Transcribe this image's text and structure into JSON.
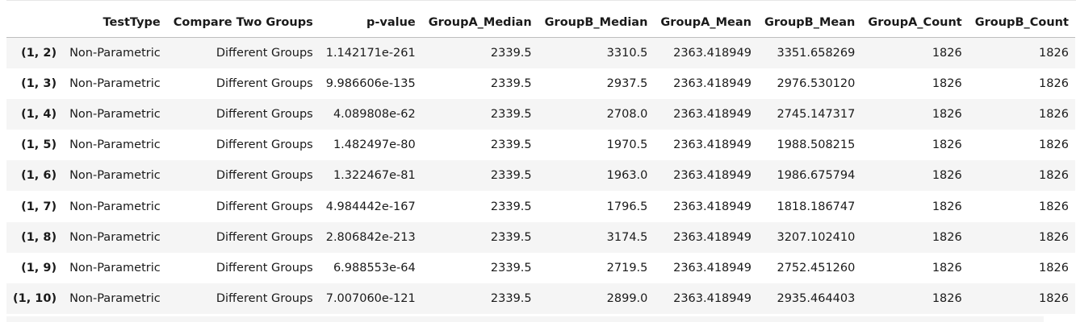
{
  "table": {
    "columns": [
      "",
      "TestType",
      "Compare Two Groups",
      "p-value",
      "GroupA_Median",
      "GroupB_Median",
      "GroupA_Mean",
      "GroupB_Mean",
      "GroupA_Count",
      "GroupB_Count"
    ],
    "rows": [
      [
        "(1, 2)",
        "Non-Parametric",
        "Different Groups",
        "1.142171e-261",
        "2339.5",
        "3310.5",
        "2363.418949",
        "3351.658269",
        "1826",
        "1826"
      ],
      [
        "(1, 3)",
        "Non-Parametric",
        "Different Groups",
        "9.986606e-135",
        "2339.5",
        "2937.5",
        "2363.418949",
        "2976.530120",
        "1826",
        "1826"
      ],
      [
        "(1, 4)",
        "Non-Parametric",
        "Different Groups",
        "4.089808e-62",
        "2339.5",
        "2708.0",
        "2363.418949",
        "2745.147317",
        "1826",
        "1826"
      ],
      [
        "(1, 5)",
        "Non-Parametric",
        "Different Groups",
        "1.482497e-80",
        "2339.5",
        "1970.5",
        "2363.418949",
        "1988.508215",
        "1826",
        "1826"
      ],
      [
        "(1, 6)",
        "Non-Parametric",
        "Different Groups",
        "1.322467e-81",
        "2339.5",
        "1963.0",
        "2363.418949",
        "1986.675794",
        "1826",
        "1826"
      ],
      [
        "(1, 7)",
        "Non-Parametric",
        "Different Groups",
        "4.984442e-167",
        "2339.5",
        "1796.5",
        "2363.418949",
        "1818.186747",
        "1826",
        "1826"
      ],
      [
        "(1, 8)",
        "Non-Parametric",
        "Different Groups",
        "2.806842e-213",
        "2339.5",
        "3174.5",
        "2363.418949",
        "3207.102410",
        "1826",
        "1826"
      ],
      [
        "(1, 9)",
        "Non-Parametric",
        "Different Groups",
        "6.988553e-64",
        "2339.5",
        "2719.5",
        "2363.418949",
        "2752.451260",
        "1826",
        "1826"
      ],
      [
        "(1, 10)",
        "Non-Parametric",
        "Different Groups",
        "7.007060e-121",
        "2339.5",
        "2899.0",
        "2363.418949",
        "2935.464403",
        "1826",
        "1826"
      ]
    ]
  }
}
